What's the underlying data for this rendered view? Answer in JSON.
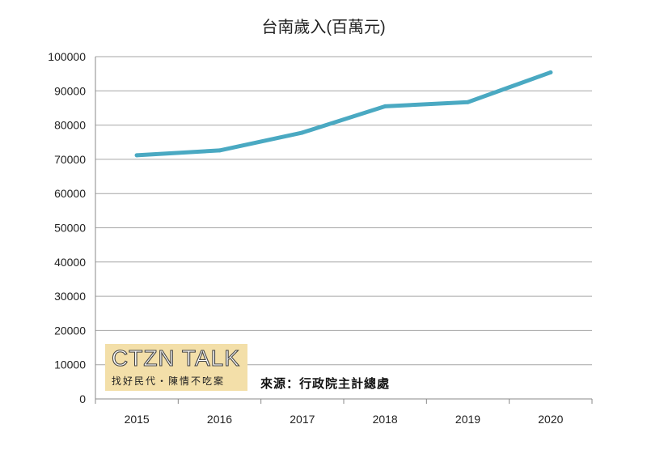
{
  "chart_data": {
    "type": "line",
    "title": "台南歲入(百萬元)",
    "xlabel": "",
    "ylabel": "",
    "categories": [
      "2015",
      "2016",
      "2017",
      "2018",
      "2019",
      "2020"
    ],
    "series": [
      {
        "name": "台南歲入",
        "values": [
          71200,
          72600,
          77800,
          85500,
          86700,
          95400
        ],
        "color": "#4aa9c2"
      }
    ],
    "ylim": [
      0,
      100000
    ],
    "yticks": [
      "0",
      "10000",
      "20000",
      "30000",
      "40000",
      "50000",
      "60000",
      "70000",
      "80000",
      "90000",
      "100000"
    ],
    "grid": true,
    "legend": "none"
  },
  "logo": {
    "main": "CTZN TALK",
    "sub": "找好民代・陳情不吃案"
  },
  "source": "來源：行政院主計總處"
}
